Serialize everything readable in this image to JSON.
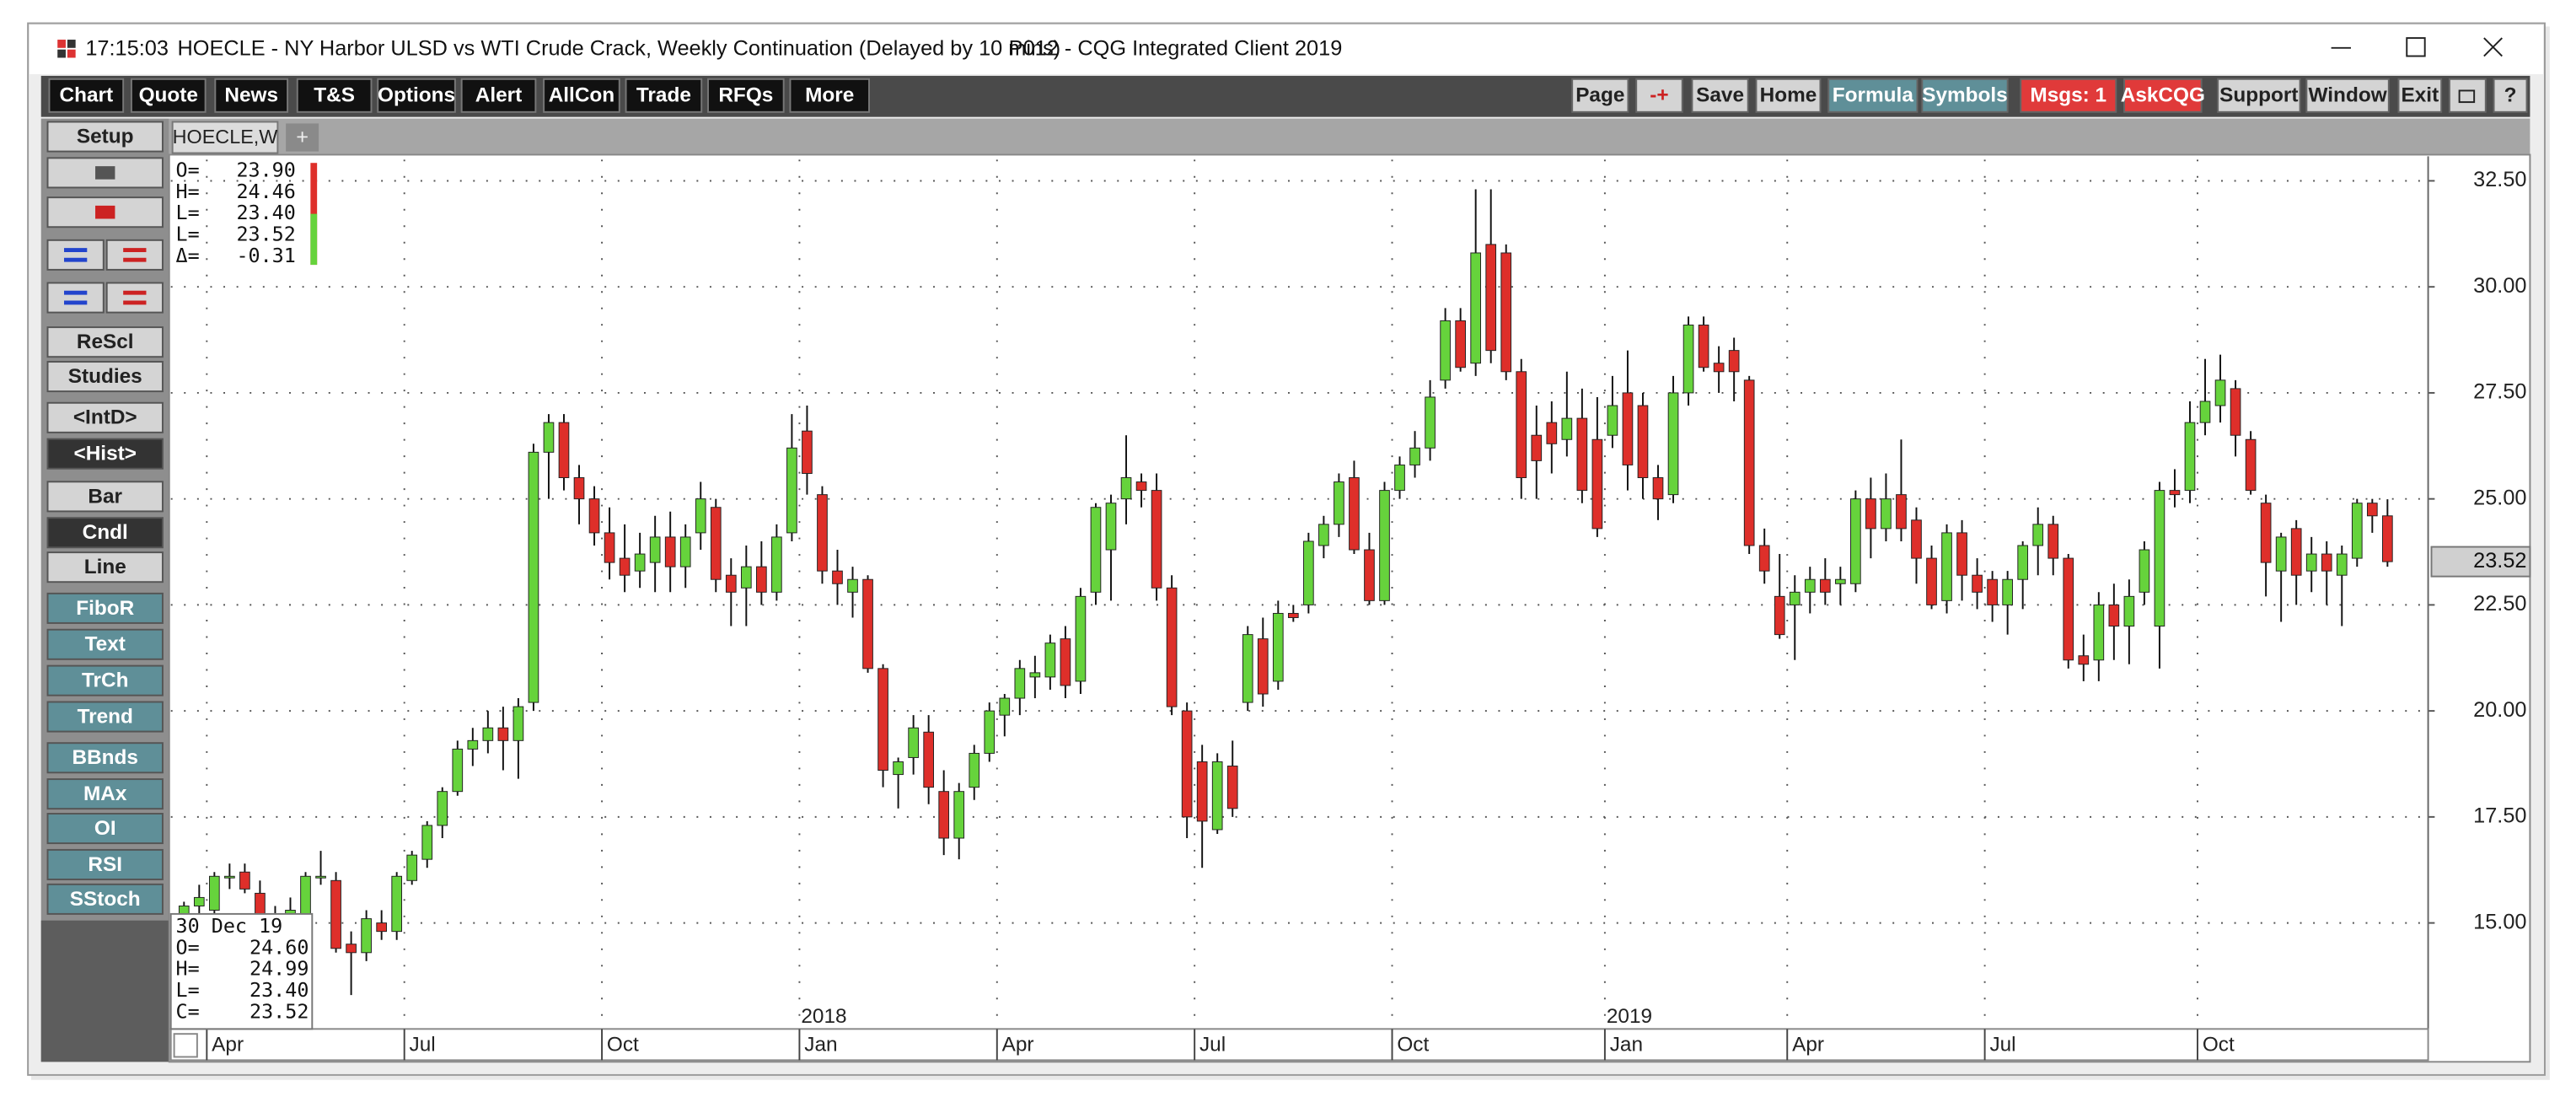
{
  "window": {
    "time": "17:15:03",
    "title": "HOECLE - NY Harbor ULSD vs WTI Crude Crack, Weekly Continuation (Delayed by 10 mins)",
    "app": "P012 - CQG Integrated Client 2019"
  },
  "toolbar": {
    "left": [
      "Chart",
      "Quote",
      "News",
      "T&S",
      "Options",
      "Alert",
      "AllCon",
      "Trade",
      "RFQs",
      "More"
    ],
    "right": [
      "Page",
      "-+",
      "Save",
      "Home",
      "Formula",
      "Symbols",
      "Msgs: 1",
      "AskCQG",
      "Support",
      "Window",
      "Exit",
      "?"
    ]
  },
  "side_panel": [
    "Setup",
    "ReScl",
    "Studies",
    "<IntD>",
    "<Hist>",
    "Bar",
    "Cndl",
    "Line",
    "FiboR",
    "Text",
    "TrCh",
    "Trend",
    "BBnds",
    "MAx",
    "OI",
    "RSI",
    "SStoch"
  ],
  "tabs": {
    "active": "HOECLE,W",
    "add": "+"
  },
  "readout_top": [
    {
      "label": "O=",
      "value": "23.90"
    },
    {
      "label": "H=",
      "value": "24.46"
    },
    {
      "label": "L=",
      "value": "23.40"
    },
    {
      "label": "L=",
      "value": "23.52"
    },
    {
      "label": "Δ=",
      "value": "-0.31"
    }
  ],
  "readout_bottom": {
    "date": "30 Dec 19",
    "rows": [
      {
        "label": "O=",
        "value": "24.60"
      },
      {
        "label": "H=",
        "value": "24.99"
      },
      {
        "label": "L=",
        "value": "23.40"
      },
      {
        "label": "C=",
        "value": "23.52"
      }
    ]
  },
  "chart_data": {
    "type": "candlestick",
    "up_color": "#66d33c",
    "down_color": "#de2f2a",
    "wick_color": "#111111",
    "grid": true,
    "ylim": [
      12.5,
      33.0
    ],
    "yticks": [
      {
        "value": 15,
        "label": "15.00"
      },
      {
        "value": 17.5,
        "label": "17.50"
      },
      {
        "value": 20,
        "label": "20.00"
      },
      {
        "value": 22.5,
        "label": "22.50"
      },
      {
        "value": 25,
        "label": "25.00"
      },
      {
        "value": 27.5,
        "label": "27.50"
      },
      {
        "value": 30,
        "label": "30.00"
      },
      {
        "value": 32.5,
        "label": "32.50"
      }
    ],
    "xticks": [
      {
        "value": 2,
        "label": "Apr"
      },
      {
        "value": 15,
        "label": "Jul"
      },
      {
        "value": 28,
        "label": "Oct"
      },
      {
        "value": 41,
        "label": "Jan"
      },
      {
        "value": 54,
        "label": "Apr"
      },
      {
        "value": 67,
        "label": "Jul"
      },
      {
        "value": 80,
        "label": "Oct"
      },
      {
        "value": 94,
        "label": "Jan"
      },
      {
        "value": 106,
        "label": "Apr"
      },
      {
        "value": 119,
        "label": "Jul"
      },
      {
        "value": 133,
        "label": "Oct"
      }
    ],
    "year_labels": [
      {
        "value": 41,
        "label": "2018"
      },
      {
        "value": 94,
        "label": "2019"
      }
    ],
    "last_price": 23.52,
    "open": [
      15.2,
      15.4,
      15.3,
      16.1,
      16.2,
      15.7,
      15.0,
      15.1,
      15.0,
      16.1,
      16.0,
      14.5,
      14.3,
      15.0,
      14.8,
      16.0,
      16.5,
      17.3,
      18.1,
      19.1,
      19.3,
      19.6,
      19.3,
      20.2,
      26.1,
      26.8,
      25.5,
      25.0,
      24.2,
      23.6,
      23.3,
      23.5,
      24.1,
      23.4,
      24.2,
      24.8,
      23.2,
      22.9,
      23.4,
      22.8,
      24.2,
      26.6,
      25.1,
      23.3,
      22.8,
      23.1,
      21.0,
      18.5,
      18.9,
      19.5,
      18.1,
      17.0,
      18.2,
      19.0,
      19.9,
      20.3,
      20.8,
      20.8,
      21.7,
      20.7,
      22.8,
      23.8,
      25.0,
      25.4,
      25.2,
      22.9,
      20.0,
      18.8,
      17.2,
      18.7,
      20.2,
      21.7,
      20.7,
      22.3,
      22.5,
      23.9,
      24.4,
      25.5,
      23.8,
      22.6,
      25.2,
      25.8,
      26.2,
      27.8,
      29.2,
      28.2,
      31.0,
      30.8,
      28.0,
      26.5,
      26.8,
      26.4,
      26.9,
      26.4,
      26.5,
      27.5,
      27.2,
      25.5,
      25.1,
      27.5,
      29.1,
      28.2,
      28.5,
      27.8,
      23.9,
      22.7,
      22.5,
      22.8,
      23.1,
      23.0,
      23.0,
      25.0,
      24.3,
      25.1,
      24.5,
      23.6,
      22.6,
      24.2,
      23.2,
      23.1,
      22.5,
      23.1,
      23.9,
      24.4,
      23.6,
      21.3,
      21.2,
      22.5,
      22.0,
      22.8,
      22.0,
      25.2,
      25.2,
      26.8,
      27.2,
      27.6,
      26.4,
      24.9,
      23.3,
      24.3,
      23.3,
      23.7,
      23.2,
      23.6,
      24.9,
      24.6
    ],
    "high": [
      15.5,
      15.9,
      16.2,
      16.4,
      16.4,
      16.0,
      15.4,
      15.6,
      16.2,
      16.7,
      16.2,
      14.8,
      15.3,
      15.3,
      16.2,
      16.7,
      17.4,
      18.2,
      19.3,
      19.6,
      20.0,
      20.1,
      20.3,
      26.3,
      27.0,
      27.0,
      25.8,
      25.3,
      24.8,
      24.4,
      24.2,
      24.6,
      24.7,
      24.4,
      25.4,
      25.0,
      23.6,
      23.9,
      24.0,
      24.4,
      27.0,
      27.2,
      25.3,
      23.8,
      23.4,
      23.2,
      21.1,
      18.9,
      19.9,
      19.9,
      18.6,
      18.3,
      19.2,
      20.2,
      20.4,
      21.2,
      21.3,
      21.8,
      22.0,
      22.9,
      24.9,
      25.1,
      26.5,
      25.6,
      25.6,
      23.2,
      20.2,
      19.2,
      19.0,
      19.3,
      22.0,
      22.2,
      22.6,
      22.5,
      24.2,
      24.6,
      25.6,
      25.9,
      24.2,
      25.4,
      26.0,
      26.6,
      27.8,
      29.5,
      29.5,
      32.3,
      32.3,
      31.0,
      28.3,
      27.2,
      27.3,
      28.0,
      27.6,
      27.4,
      27.9,
      28.5,
      27.5,
      25.8,
      27.9,
      29.3,
      29.3,
      28.6,
      28.8,
      27.9,
      24.3,
      23.7,
      23.2,
      23.4,
      23.6,
      23.4,
      25.2,
      25.5,
      25.6,
      26.4,
      24.8,
      23.9,
      24.4,
      24.5,
      23.6,
      23.3,
      23.3,
      24.0,
      24.8,
      24.6,
      23.7,
      21.8,
      22.8,
      23.0,
      23.1,
      24.0,
      25.4,
      25.7,
      27.3,
      28.3,
      28.4,
      27.8,
      26.6,
      25.1,
      24.2,
      24.5,
      24.1,
      24.0,
      23.9,
      25.0,
      25.0,
      24.99
    ],
    "low": [
      15.0,
      15.2,
      15.2,
      15.8,
      15.7,
      14.9,
      14.6,
      14.8,
      14.9,
      15.9,
      14.3,
      13.3,
      14.1,
      14.6,
      14.6,
      15.9,
      16.3,
      17.0,
      18.0,
      18.7,
      19.0,
      18.6,
      18.4,
      20.0,
      25.0,
      25.2,
      24.4,
      23.9,
      23.1,
      22.8,
      22.9,
      22.8,
      22.8,
      22.9,
      23.8,
      22.8,
      22.0,
      22.0,
      22.5,
      22.6,
      24.0,
      25.1,
      23.0,
      22.5,
      22.2,
      20.9,
      18.2,
      17.7,
      18.5,
      17.8,
      16.6,
      16.5,
      17.9,
      18.8,
      19.4,
      19.9,
      20.3,
      20.5,
      20.3,
      20.4,
      22.5,
      22.6,
      24.4,
      24.8,
      22.6,
      19.9,
      17.0,
      16.3,
      17.1,
      17.5,
      20.0,
      20.1,
      20.5,
      22.1,
      22.3,
      23.6,
      24.1,
      23.7,
      22.5,
      22.5,
      25.0,
      25.5,
      25.9,
      27.6,
      28.0,
      27.9,
      28.2,
      27.8,
      25.0,
      25.0,
      25.6,
      26.0,
      24.9,
      24.1,
      26.2,
      25.2,
      25.0,
      24.5,
      24.9,
      27.2,
      28.0,
      27.5,
      27.3,
      23.7,
      23.0,
      21.7,
      21.2,
      22.3,
      22.5,
      22.5,
      22.8,
      23.6,
      24.0,
      24.0,
      23.0,
      22.4,
      22.3,
      22.6,
      22.4,
      22.1,
      21.8,
      22.4,
      23.2,
      23.2,
      21.0,
      20.7,
      20.7,
      21.2,
      21.1,
      22.5,
      21.0,
      24.8,
      24.9,
      26.5,
      26.8,
      26.0,
      25.1,
      22.7,
      22.1,
      22.5,
      22.8,
      22.5,
      22.0,
      23.4,
      24.2,
      23.4
    ],
    "close": [
      15.4,
      15.6,
      16.1,
      16.1,
      15.8,
      15.0,
      15.1,
      15.3,
      16.1,
      16.1,
      14.4,
      14.3,
      15.1,
      14.8,
      16.1,
      16.6,
      17.3,
      18.1,
      19.1,
      19.3,
      19.6,
      19.3,
      20.1,
      26.1,
      26.8,
      25.5,
      25.0,
      24.2,
      23.5,
      23.2,
      23.7,
      24.1,
      23.4,
      24.1,
      25.0,
      23.1,
      22.8,
      23.4,
      22.8,
      24.1,
      26.2,
      25.6,
      23.3,
      23.0,
      23.1,
      21.0,
      18.6,
      18.8,
      19.6,
      18.2,
      17.0,
      18.1,
      19.0,
      20.0,
      20.3,
      21.0,
      20.9,
      21.6,
      20.6,
      22.7,
      24.8,
      24.9,
      25.5,
      25.2,
      22.9,
      20.1,
      17.5,
      17.4,
      18.8,
      17.7,
      21.8,
      20.4,
      22.3,
      22.2,
      24.0,
      24.4,
      25.4,
      23.8,
      22.6,
      25.2,
      25.8,
      26.2,
      27.4,
      29.2,
      28.1,
      30.8,
      28.5,
      28.0,
      25.5,
      25.9,
      26.3,
      26.9,
      25.2,
      24.3,
      27.2,
      25.8,
      25.5,
      25.0,
      27.5,
      29.1,
      28.1,
      28.0,
      28.0,
      23.9,
      23.3,
      21.8,
      22.8,
      23.1,
      22.8,
      23.1,
      25.0,
      24.3,
      25.0,
      24.3,
      23.6,
      22.5,
      24.2,
      23.2,
      22.8,
      22.5,
      23.1,
      23.9,
      24.4,
      23.6,
      21.2,
      21.1,
      22.5,
      22.0,
      22.7,
      23.8,
      25.2,
      25.1,
      26.8,
      27.3,
      27.8,
      26.5,
      25.2,
      23.5,
      24.1,
      23.2,
      23.7,
      23.3,
      23.7,
      24.9,
      24.6,
      23.52
    ]
  }
}
